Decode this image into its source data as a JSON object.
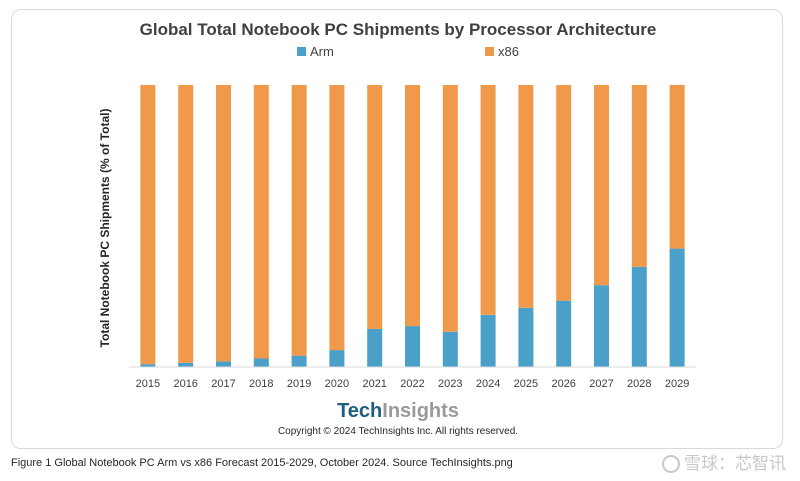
{
  "chart_data": {
    "type": "bar",
    "stacked": true,
    "title": "Global Total Notebook PC Shipments by Processor Architecture",
    "xlabel": "",
    "ylabel": "Total Notebook PC Shipments (% of Total)",
    "ylim": [
      0,
      100
    ],
    "grid": false,
    "legend_position": "top-center",
    "categories": [
      "2015",
      "2016",
      "2017",
      "2018",
      "2019",
      "2020",
      "2021",
      "2022",
      "2023",
      "2024",
      "2025",
      "2026",
      "2027",
      "2028",
      "2029"
    ],
    "series": [
      {
        "name": "Arm",
        "color": "#4aa0c8",
        "values": [
          1,
          1.5,
          2,
          3,
          4,
          6,
          13.5,
          14.5,
          12.5,
          18.5,
          21,
          23.5,
          29,
          35.5,
          42
        ]
      },
      {
        "name": "x86",
        "color": "#f0994a",
        "values": [
          99,
          98.5,
          98,
          97,
          96,
          94,
          86.5,
          85.5,
          87.5,
          81.5,
          79,
          76.5,
          71,
          64.5,
          58
        ]
      }
    ]
  },
  "branding": {
    "logo_part1": "Tech",
    "logo_part2": "Insights",
    "copyright": "Copyright © 2024 TechInsights Inc.  All rights reserved."
  },
  "caption": "Figure 1 Global Notebook PC Arm vs x86 Forecast 2015-2029, October 2024. Source TechInsights.png",
  "watermark": "雪球：芯智讯"
}
